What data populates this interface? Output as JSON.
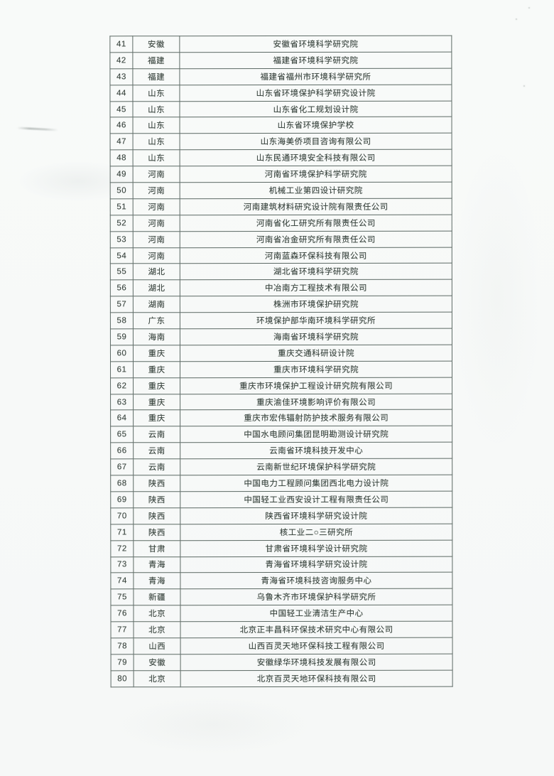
{
  "document": {
    "kind": "scanned-table-page",
    "page_background": "#f8faf9",
    "table": {
      "border_color": "#5d6a65",
      "text_color": "#39443e",
      "rows": [
        {
          "no": "41",
          "province": "安徽",
          "organization": "安徽省环境科学研究院"
        },
        {
          "no": "42",
          "province": "福建",
          "organization": "福建省环境科学研究院"
        },
        {
          "no": "43",
          "province": "福建",
          "organization": "福建省福州市环境科学研究所"
        },
        {
          "no": "44",
          "province": "山东",
          "organization": "山东省环境保护科学研究设计院"
        },
        {
          "no": "45",
          "province": "山东",
          "organization": "山东省化工规划设计院"
        },
        {
          "no": "46",
          "province": "山东",
          "organization": "山东省环境保护学校"
        },
        {
          "no": "47",
          "province": "山东",
          "organization": "山东海美侨项目咨询有限公司"
        },
        {
          "no": "48",
          "province": "山东",
          "organization": "山东民通环境安全科技有限公司"
        },
        {
          "no": "49",
          "province": "河南",
          "organization": "河南省环境保护科学研究院"
        },
        {
          "no": "50",
          "province": "河南",
          "organization": "机械工业第四设计研究院"
        },
        {
          "no": "51",
          "province": "河南",
          "organization": "河南建筑材料研究设计院有限责任公司"
        },
        {
          "no": "52",
          "province": "河南",
          "organization": "河南省化工研究所有限责任公司"
        },
        {
          "no": "53",
          "province": "河南",
          "organization": "河南省冶金研究所有限责任公司"
        },
        {
          "no": "54",
          "province": "河南",
          "organization": "河南蓝森环保科技有限公司"
        },
        {
          "no": "55",
          "province": "湖北",
          "organization": "湖北省环境科学研究院"
        },
        {
          "no": "56",
          "province": "湖北",
          "organization": "中冶南方工程技术有限公司"
        },
        {
          "no": "57",
          "province": "湖南",
          "organization": "株洲市环境保护研究院"
        },
        {
          "no": "58",
          "province": "广东",
          "organization": "环境保护部华南环境科学研究所"
        },
        {
          "no": "59",
          "province": "海南",
          "organization": "海南省环境科学研究院"
        },
        {
          "no": "60",
          "province": "重庆",
          "organization": "重庆交通科研设计院"
        },
        {
          "no": "61",
          "province": "重庆",
          "organization": "重庆市环境科学研究院"
        },
        {
          "no": "62",
          "province": "重庆",
          "organization": "重庆市环境保护工程设计研究院有限公司"
        },
        {
          "no": "63",
          "province": "重庆",
          "organization": "重庆渝佳环境影响评价有限公司"
        },
        {
          "no": "64",
          "province": "重庆",
          "organization": "重庆市宏伟辐射防护技术服务有限公司"
        },
        {
          "no": "65",
          "province": "云南",
          "organization": "中国水电顾问集团昆明勘测设计研究院"
        },
        {
          "no": "66",
          "province": "云南",
          "organization": "云南省环境科技开发中心"
        },
        {
          "no": "67",
          "province": "云南",
          "organization": "云南新世纪环境保护科学研究院"
        },
        {
          "no": "68",
          "province": "陕西",
          "organization": "中国电力工程顾问集团西北电力设计院"
        },
        {
          "no": "69",
          "province": "陕西",
          "organization": "中国轻工业西安设计工程有限责任公司"
        },
        {
          "no": "70",
          "province": "陕西",
          "organization": "陕西省环境科学研究设计院"
        },
        {
          "no": "71",
          "province": "陕西",
          "organization": "核工业二○三研究所"
        },
        {
          "no": "72",
          "province": "甘肃",
          "organization": "甘肃省环境科学设计研究院"
        },
        {
          "no": "73",
          "province": "青海",
          "organization": "青海省环境科学研究设计院"
        },
        {
          "no": "74",
          "province": "青海",
          "organization": "青海省环境科技咨询服务中心"
        },
        {
          "no": "75",
          "province": "新疆",
          "organization": "乌鲁木齐市环境保护科学研究所"
        },
        {
          "no": "76",
          "province": "北京",
          "organization": "中国轻工业清洁生产中心"
        },
        {
          "no": "77",
          "province": "北京",
          "organization": "北京正丰昌科环保技术研究中心有限公司"
        },
        {
          "no": "78",
          "province": "山西",
          "organization": "山西百灵天地环保科技工程有限公司"
        },
        {
          "no": "79",
          "province": "安徽",
          "organization": "安徽绿华环境科技发展有限公司"
        },
        {
          "no": "80",
          "province": "北京",
          "organization": "北京百灵天地环保科技有限公司"
        }
      ]
    }
  }
}
